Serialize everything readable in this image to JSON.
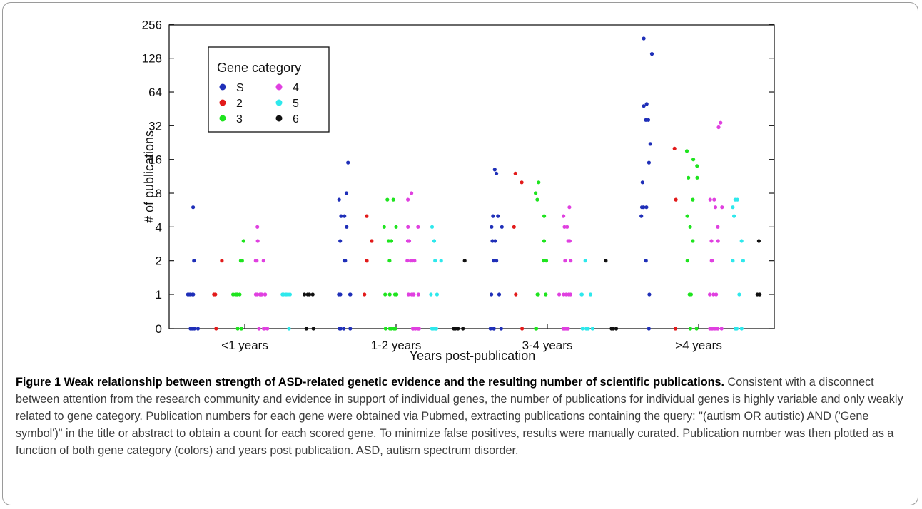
{
  "colors": {
    "S": "#1f2fb8",
    "2": "#e21a1a",
    "3": "#1ee41e",
    "4": "#e040e0",
    "5": "#2ee8ec",
    "6": "#111111"
  },
  "chart_data": {
    "type": "scatter",
    "ylabel": "# of publications",
    "xlabel": "Years post-publication",
    "y_scale": "log2 (0 shown at bottom)",
    "y_ticks": [
      "0",
      "1",
      "2",
      "4",
      "8",
      "16",
      "32",
      "64",
      "128",
      "256"
    ],
    "x_categories": [
      "<1 years",
      "1-2 years",
      "3-4 years",
      ">4 years"
    ],
    "grid": false,
    "legend": {
      "title": "Gene category",
      "placement": "top-left",
      "entries": [
        {
          "name": "S",
          "color": "#1f2fb8"
        },
        {
          "name": "2",
          "color": "#e21a1a"
        },
        {
          "name": "3",
          "color": "#1ee41e"
        },
        {
          "name": "4",
          "color": "#e040e0"
        },
        {
          "name": "5",
          "color": "#2ee8ec"
        },
        {
          "name": "6",
          "color": "#111111"
        }
      ]
    },
    "series": [
      {
        "name": "S",
        "values_by_group": [
          [
            6,
            2,
            1,
            1,
            1,
            1,
            1,
            0,
            0,
            0,
            0
          ],
          [
            15,
            8,
            7,
            5,
            5,
            4,
            3,
            2,
            2,
            1,
            1,
            1,
            1,
            0,
            0,
            0,
            0
          ],
          [
            13,
            12,
            5,
            5,
            4,
            4,
            3,
            3,
            2,
            2,
            1,
            1,
            0,
            0,
            0,
            0
          ],
          [
            192,
            140,
            50,
            48,
            36,
            36,
            22,
            15,
            10,
            6,
            6,
            6,
            5,
            2,
            1,
            0
          ]
        ]
      },
      {
        "name": "2",
        "values_by_group": [
          [
            2,
            1,
            1,
            0
          ],
          [
            5,
            3,
            2,
            2,
            1
          ],
          [
            12,
            10,
            4,
            1,
            0
          ],
          [
            20,
            7,
            0
          ]
        ]
      },
      {
        "name": "3",
        "values_by_group": [
          [
            3,
            2,
            2,
            1,
            1,
            1,
            1,
            1,
            0,
            0
          ],
          [
            7,
            7,
            4,
            4,
            3,
            3,
            2,
            1,
            1,
            1,
            1,
            0,
            0,
            0,
            0,
            0
          ],
          [
            10,
            8,
            7,
            5,
            3,
            2,
            2,
            1,
            1,
            1,
            0,
            0
          ],
          [
            19,
            16,
            14,
            11,
            11,
            7,
            5,
            4,
            3,
            2,
            1,
            1,
            0,
            0
          ]
        ]
      },
      {
        "name": "4",
        "values_by_group": [
          [
            4,
            3,
            2,
            2,
            2,
            1,
            1,
            1,
            1,
            1,
            1,
            1,
            1,
            1,
            0,
            0,
            0,
            0
          ],
          [
            8,
            7,
            4,
            4,
            3,
            3,
            2,
            2,
            2,
            2,
            1,
            1,
            1,
            1,
            1,
            1,
            0,
            0,
            0,
            0,
            0,
            0,
            0
          ],
          [
            6,
            5,
            4,
            4,
            3,
            3,
            2,
            2,
            1,
            1,
            1,
            1,
            1,
            0,
            0,
            0,
            0,
            0,
            0,
            0
          ],
          [
            34,
            31,
            7,
            7,
            6,
            6,
            4,
            3,
            3,
            2,
            2,
            1,
            1,
            1,
            0,
            0,
            0,
            0,
            0,
            0,
            0
          ]
        ]
      },
      {
        "name": "5",
        "values_by_group": [
          [
            1,
            1,
            1,
            1,
            1,
            0
          ],
          [
            4,
            3,
            2,
            2,
            1,
            1,
            0,
            0,
            0,
            0,
            0
          ],
          [
            2,
            1,
            1,
            1,
            0,
            0,
            0,
            0,
            0
          ],
          [
            7,
            7,
            6,
            5,
            3,
            2,
            2,
            1,
            0,
            0,
            0,
            0
          ]
        ]
      },
      {
        "name": "6",
        "values_by_group": [
          [
            1,
            1,
            1,
            1,
            0,
            0
          ],
          [
            2,
            0,
            0,
            0,
            0
          ],
          [
            2,
            0,
            0,
            0
          ],
          [
            3,
            1,
            1,
            1
          ]
        ]
      }
    ]
  },
  "caption": {
    "title": "Figure 1 Weak relationship between strength of ASD-related genetic evidence and the resulting number of scientific publications.",
    "body": "Consistent with a disconnect between attention from the research community and evidence in support of individual genes, the number of publications for individual genes is highly variable and only weakly related to gene category. Publication numbers for each gene were obtained via Pubmed, extracting publications containing the query: \"(autism OR autistic) AND ('Gene symbol')\" in the title or abstract to obtain a count for each scored gene. To minimize false positives, results were manually curated. Publication number was then plotted as a function of both gene category (colors) and years post publication. ASD, autism spectrum disorder."
  }
}
